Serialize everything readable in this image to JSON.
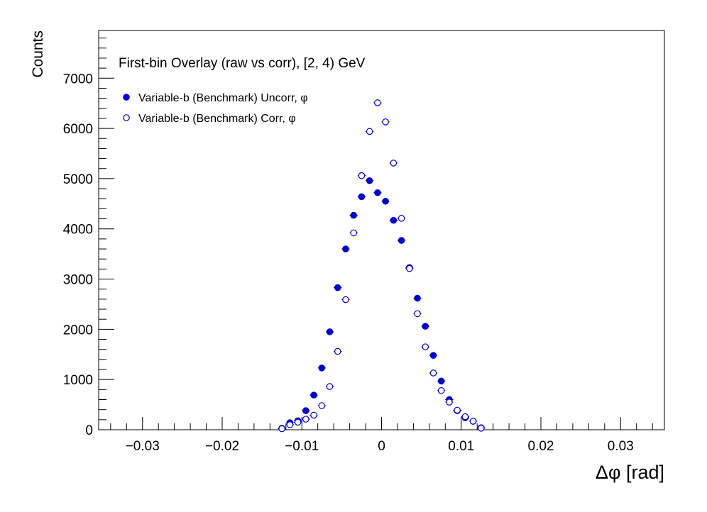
{
  "chart_data": {
    "type": "scatter",
    "title": "First-bin Overlay (raw vs corr), [2, 4) GeV",
    "xlabel": "Δφ  [rad]",
    "ylabel": "Counts",
    "xlim": [
      -0.0355,
      0.0355
    ],
    "ylim": [
      0,
      7950
    ],
    "x_ticks": [
      -0.03,
      -0.02,
      -0.01,
      0,
      0.01,
      0.02,
      0.03
    ],
    "x_tick_labels": [
      "−0.03",
      "−0.02",
      "−0.01",
      "0",
      "0.01",
      "0.02",
      "0.03"
    ],
    "y_ticks": [
      0,
      1000,
      2000,
      3000,
      4000,
      5000,
      6000,
      7000
    ],
    "y_tick_labels": [
      "0",
      "1000",
      "2000",
      "3000",
      "4000",
      "5000",
      "6000",
      "7000"
    ],
    "grid": false,
    "legend_position": "top-left",
    "series": [
      {
        "name": "Variable-b (Benchmark) Uncorr, φ",
        "marker": "filled-circle",
        "color": "#0000cc",
        "x": [
          -0.0125,
          -0.0115,
          -0.0105,
          -0.0095,
          -0.0085,
          -0.0075,
          -0.0065,
          -0.0055,
          -0.0045,
          -0.0035,
          -0.0025,
          -0.0015,
          -0.0005,
          0.0005,
          0.0015,
          0.0025,
          0.0035,
          0.0045,
          0.0055,
          0.0065,
          0.0075,
          0.0085,
          0.0095,
          0.0105,
          0.0115,
          0.0125
        ],
        "y": [
          30,
          140,
          180,
          380,
          690,
          1230,
          1950,
          2830,
          3600,
          4270,
          4640,
          4960,
          4720,
          4550,
          4170,
          3770,
          3230,
          2620,
          2060,
          1480,
          970,
          600,
          380,
          240,
          170,
          40
        ]
      },
      {
        "name": "Variable-b (Benchmark) Corr, φ",
        "marker": "open-circle",
        "color": "#0000cc",
        "x": [
          -0.0125,
          -0.0115,
          -0.0105,
          -0.0095,
          -0.0085,
          -0.0075,
          -0.0065,
          -0.0055,
          -0.0045,
          -0.0035,
          -0.0025,
          -0.0015,
          -0.0005,
          0.0005,
          0.0015,
          0.0025,
          0.0035,
          0.0045,
          0.0055,
          0.0065,
          0.0075,
          0.0085,
          0.0095,
          0.0105,
          0.0115,
          0.0125
        ],
        "y": [
          20,
          100,
          150,
          210,
          290,
          480,
          860,
          1560,
          2590,
          3920,
          5060,
          5940,
          6510,
          6130,
          5310,
          4210,
          3210,
          2310,
          1650,
          1130,
          780,
          550,
          390,
          260,
          170,
          30
        ]
      }
    ]
  }
}
